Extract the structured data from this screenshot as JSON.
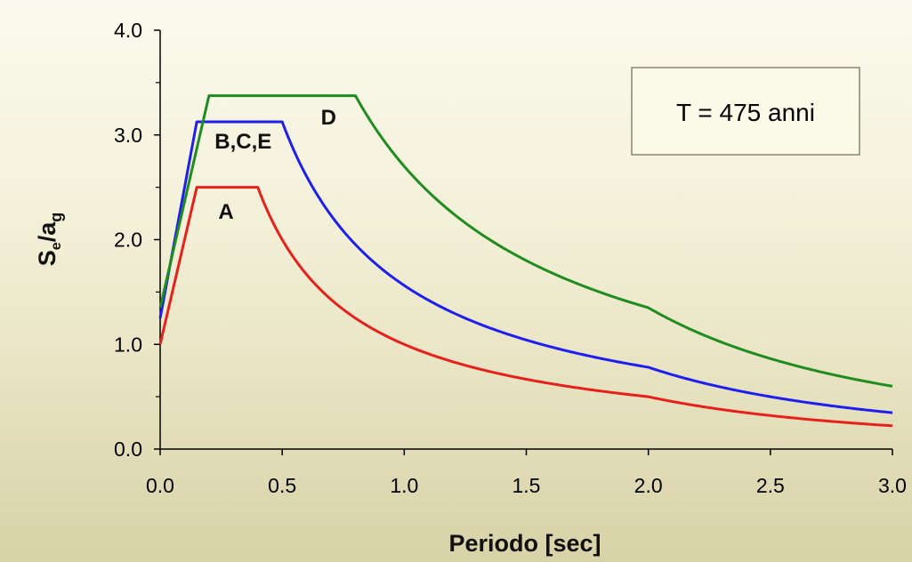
{
  "chart_data": {
    "type": "line",
    "xlabel": "Periodo [sec]",
    "ylabel": {
      "main": "S",
      "sub1": "e",
      "mid": "/a",
      "sub2": "g"
    },
    "xlim": [
      0,
      3
    ],
    "ylim": [
      0,
      4
    ],
    "x_ticks": [
      "0.0",
      "0.5",
      "1.0",
      "1.5",
      "2.0",
      "2.5",
      "3.0"
    ],
    "y_ticks": [
      "0.0",
      "1.0",
      "2.0",
      "3.0",
      "4.0"
    ],
    "annotation": "T = 475 anni",
    "grid": false,
    "series": [
      {
        "name": "A",
        "color": "#e8201c",
        "ag_factor": 1.0,
        "TB": 0.15,
        "TC": 0.4,
        "TD": 2.0,
        "label_at": [
          0.27,
          2.2
        ]
      },
      {
        "name": "B,C,E",
        "color": "#1e1ef0",
        "ag_factor": 1.25,
        "TB": 0.15,
        "TC": 0.5,
        "TD": 2.0,
        "label_at": [
          0.34,
          2.87
        ]
      },
      {
        "name": "D",
        "color": "#1e8c1e",
        "ag_factor": 1.35,
        "TB": 0.2,
        "TC": 0.8,
        "TD": 2.0,
        "label_at": [
          0.69,
          3.1
        ]
      }
    ]
  }
}
